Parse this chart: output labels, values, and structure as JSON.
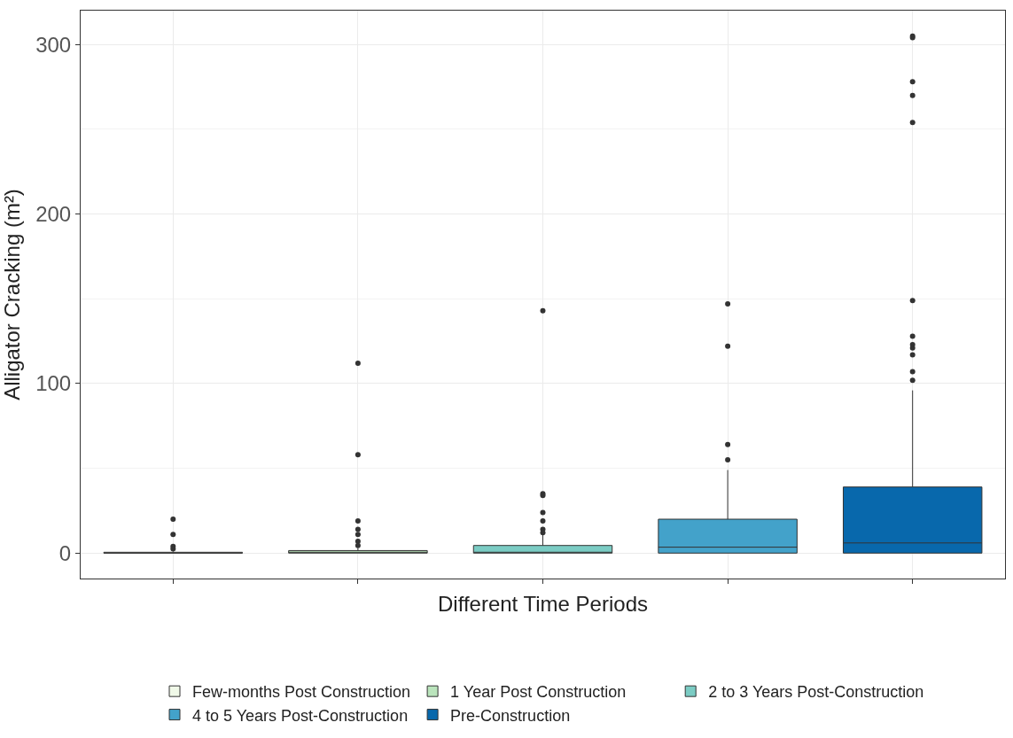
{
  "chart_data": {
    "type": "box",
    "xlabel": "Different Time Periods",
    "ylabel": "Alligator Cracking (m²)",
    "categories": [
      null,
      null,
      null,
      null,
      null
    ],
    "ylim": [
      -15,
      320
    ],
    "yticks": [
      0,
      100,
      200,
      300
    ],
    "grid": true,
    "legend": "bottom",
    "tick_labels": "y",
    "series": [
      {
        "name": "Few-months Post Construction",
        "color": "#f0f9e8",
        "boxes": [
          {
            "q1": 0,
            "median": 0,
            "q3": 0.5,
            "high": 1,
            "outliers": [
              20,
              11,
              4,
              2.5
            ]
          },
          null,
          null,
          null,
          null
        ]
      },
      {
        "name": "1 Year Post Construction",
        "color": "#bae4bc",
        "boxes": [
          null,
          {
            "q1": 0,
            "median": 0.5,
            "q3": 1.5,
            "high": 3,
            "outliers": [
              112,
              58,
              19,
              14,
              11,
              7,
              4.5
            ]
          },
          null,
          null,
          null
        ]
      },
      {
        "name": "2 to 3 Years Post-Construction",
        "color": "#7bccc4",
        "boxes": [
          null,
          null,
          {
            "q1": 0,
            "median": 0.5,
            "q3": 4.5,
            "high": 11,
            "outliers": [
              143,
              35,
              34,
              24,
              19,
              14,
              12
            ]
          },
          null,
          null
        ]
      },
      {
        "name": "4 to 5 Years Post-Construction",
        "color": "#43a2ca",
        "boxes": [
          null,
          null,
          null,
          {
            "q1": 0,
            "median": 3.5,
            "q3": 20,
            "high": 49,
            "outliers": [
              147,
              122,
              64,
              55
            ]
          },
          null
        ]
      },
      {
        "name": "Pre-Construction",
        "color": "#0868ac",
        "boxes": [
          null,
          null,
          null,
          null,
          {
            "q1": 0,
            "median": 6,
            "q3": 39,
            "high": 96,
            "outliers": [
              305,
              304,
              278,
              270,
              254,
              149,
              128,
              123,
              121,
              117,
              107,
              102
            ]
          }
        ]
      }
    ]
  }
}
